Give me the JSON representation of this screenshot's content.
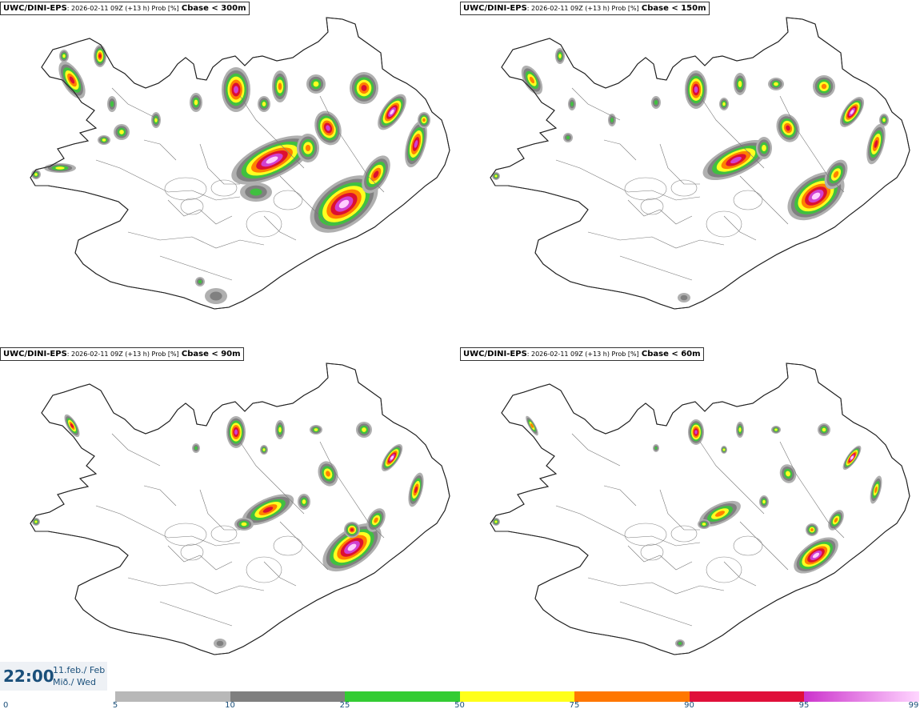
{
  "panels": [
    {
      "model": "UWC/DINI-EPS",
      "meta": ": 2026-02-11 09Z (+13 h) Prob [%]",
      "variable": "Cbase < 300m"
    },
    {
      "model": "UWC/DINI-EPS",
      "meta": ": 2026-02-11 09Z (+13 h) Prob [%]",
      "variable": "Cbase < 150m"
    },
    {
      "model": "UWC/DINI-EPS",
      "meta": ": 2026-02-11 09Z (+13 h) Prob [%]",
      "variable": "Cbase < 90m"
    },
    {
      "model": "UWC/DINI-EPS",
      "meta": ": 2026-02-11 09Z (+13 h) Prob [%]",
      "variable": "Cbase < 60m"
    }
  ],
  "clock": {
    "time": "22:00",
    "date_line1": "11.feb./ Feb",
    "date_line2": "Mið./ Wed"
  },
  "legend": {
    "ticks": [
      "0",
      "5",
      "10",
      "25",
      "50",
      "75",
      "90",
      "95",
      "99"
    ],
    "colors": [
      "#ffffff",
      "#b8b8b8",
      "#7f7f7f",
      "#33cc33",
      "#ffff1a",
      "#ff7700",
      "#e0103a",
      "#cc33cc",
      "#ffd6ff"
    ]
  },
  "palette": {
    "gray_light": "#b0b0b0",
    "gray_dark": "#808080",
    "green": "#40c040",
    "yellow": "#ffff20",
    "orange": "#ff8000",
    "red": "#dd1030",
    "magenta": "#d040d0",
    "pink": "#ffccff"
  }
}
